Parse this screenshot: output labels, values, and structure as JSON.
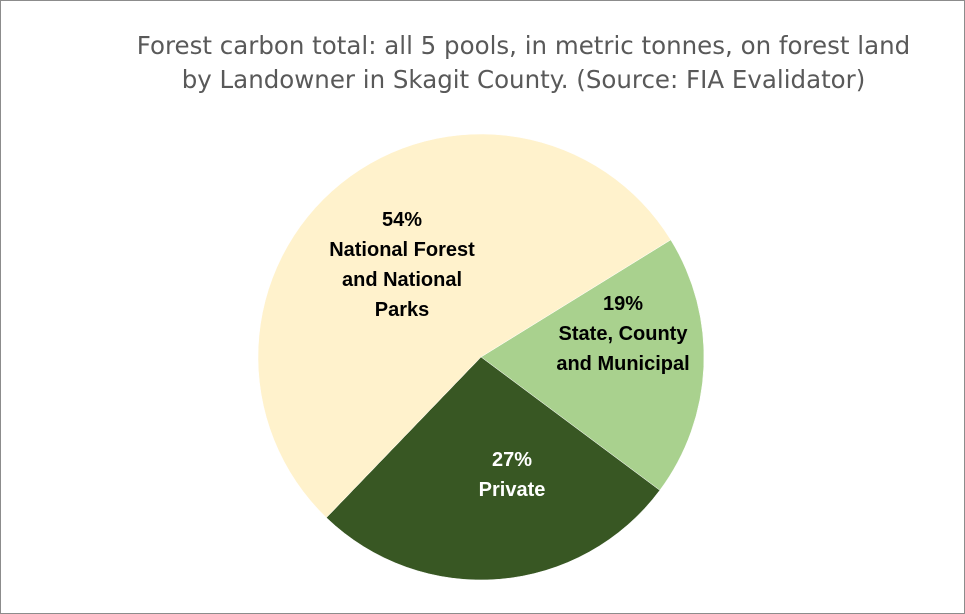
{
  "chart_data": {
    "type": "pie",
    "title_lines": [
      "Forest carbon total: all 5 pools, in metric tonnes, on forest land",
      "by Landowner in Skagit County.  (Source: FIA Evalidator)"
    ],
    "slices": [
      {
        "category": "State, County and Municipal",
        "percent": 19,
        "color": "#a9d18e",
        "label_lines": [
          "19%",
          "State, County",
          "and Municipal"
        ],
        "label_color": "#000000"
      },
      {
        "category": "Private",
        "percent": 27,
        "color": "#385723",
        "label_lines": [
          "27%",
          "Private"
        ],
        "label_color": "#ffffff"
      },
      {
        "category": "National Forest and National Parks",
        "percent": 54,
        "color": "#fff2cc",
        "label_lines": [
          "54%",
          "National Forest",
          "and National",
          "Parks"
        ],
        "label_color": "#000000"
      }
    ],
    "start_angle_deg": 58.3,
    "direction": "clockwise",
    "legend": "none"
  }
}
